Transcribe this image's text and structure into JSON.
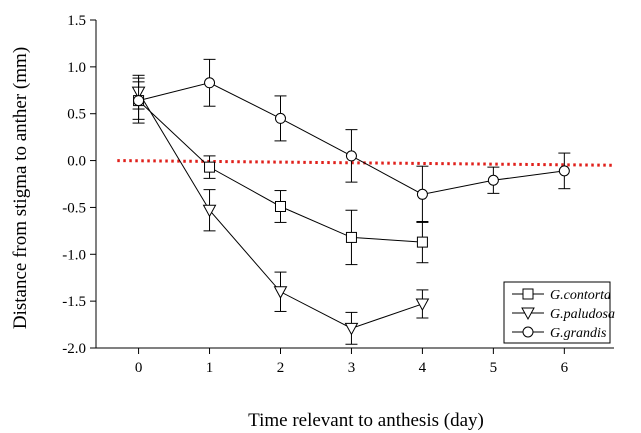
{
  "chart_data": {
    "type": "line",
    "title": "",
    "xlabel": "Time relevant to anthesis (day)",
    "ylabel": "Distance from stigma to anther (mm)",
    "xlim": [
      -0.6,
      6.7
    ],
    "ylim": [
      -2.0,
      1.5
    ],
    "x_ticks": [
      "0",
      "1",
      "2",
      "3",
      "4",
      "5",
      "6"
    ],
    "y_ticks": [
      "1.5",
      "1.0",
      "0.5",
      "0.0",
      "-0.5",
      "-1.0",
      "-1.5",
      "-2.0"
    ],
    "y_tick_values": [
      1.5,
      1.0,
      0.5,
      0.0,
      -0.5,
      -1.0,
      -1.5,
      -2.0
    ],
    "grid": false,
    "legend_position": "bottom-right",
    "reference_line": {
      "style": "dotted",
      "color": "#e0201b",
      "points": [
        [
          -0.3,
          0.0
        ],
        [
          6.7,
          -0.05
        ]
      ]
    },
    "series": [
      {
        "name": "G.contorta",
        "marker": "square",
        "x": [
          0,
          1,
          2,
          3,
          4
        ],
        "y": [
          0.64,
          -0.07,
          -0.49,
          -0.82,
          -0.87
        ],
        "err": [
          0.2,
          0.12,
          0.17,
          0.29,
          0.22
        ]
      },
      {
        "name": "G.paludosa",
        "marker": "triangle-down",
        "x": [
          0,
          1,
          2,
          3,
          4
        ],
        "y": [
          0.73,
          -0.53,
          -1.4,
          -1.79,
          -1.53
        ],
        "err": [
          0.18,
          0.22,
          0.21,
          0.17,
          0.15
        ]
      },
      {
        "name": "G.grandis",
        "marker": "circle",
        "x": [
          0,
          1,
          2,
          3,
          4,
          5,
          6
        ],
        "y": [
          0.64,
          0.83,
          0.45,
          0.05,
          -0.36,
          -0.21,
          -0.11
        ],
        "err": [
          0.24,
          0.25,
          0.24,
          0.28,
          0.3,
          0.14,
          0.19
        ]
      }
    ]
  }
}
